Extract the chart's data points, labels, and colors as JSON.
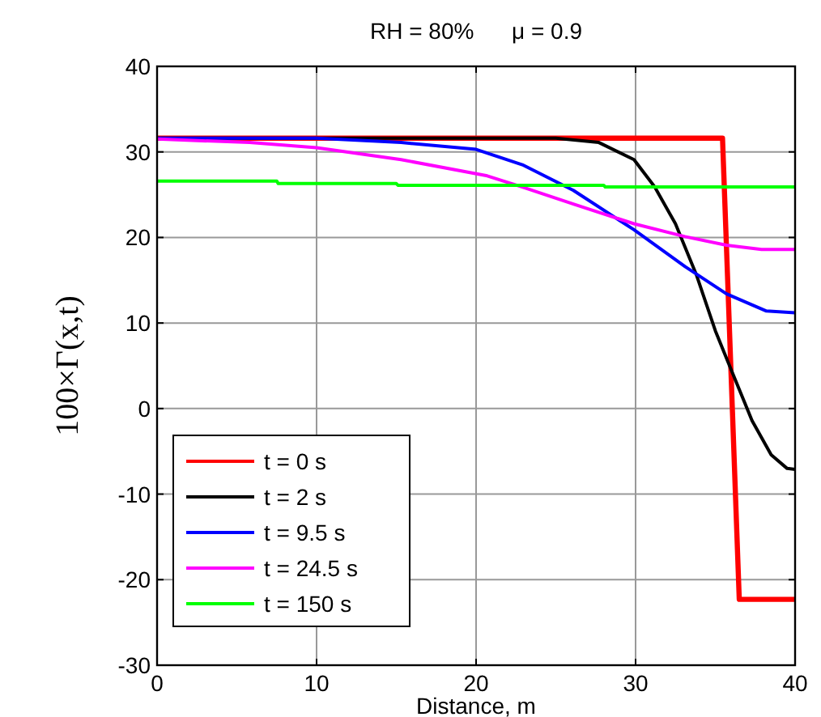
{
  "chart_data": {
    "type": "line",
    "title": "RH = 80%      μ = 0.9",
    "xlabel": "Distance, m",
    "ylabel": "100×Γ(x,t)",
    "xlim": [
      0,
      40
    ],
    "ylim": [
      -30,
      40
    ],
    "xticks": [
      0,
      10,
      20,
      30,
      40
    ],
    "yticks": [
      -30,
      -20,
      -10,
      0,
      10,
      20,
      30,
      40
    ],
    "grid": true,
    "legend": "bottom left",
    "line_style": "solid",
    "marker": "none",
    "series": [
      {
        "name": "t = 0 s",
        "color": "#ff0000",
        "x": [
          0,
          35.45,
          36.5,
          40
        ],
        "values": [
          31.6,
          31.6,
          -22.3,
          -22.3
        ]
      },
      {
        "name": "t = 2 s",
        "color": "#000000",
        "x": [
          0,
          25,
          27.7,
          29.9,
          31.2,
          32.5,
          33.8,
          35.0,
          36.0,
          37.3,
          38.5,
          39.5,
          40
        ],
        "values": [
          31.6,
          31.6,
          31.1,
          29.1,
          25.9,
          21.6,
          15.7,
          9.1,
          4.5,
          -1.4,
          -5.4,
          -7.0,
          -7.1
        ]
      },
      {
        "name": "t = 9.5 s",
        "color": "#0000ff",
        "x": [
          0,
          10,
          15.3,
          20,
          22.9,
          26.1,
          29.9,
          33.1,
          35.7,
          38.2,
          40
        ],
        "values": [
          31.6,
          31.6,
          31.1,
          30.3,
          28.5,
          25.5,
          20.9,
          16.6,
          13.4,
          11.4,
          11.2
        ]
      },
      {
        "name": "t = 24.5 s",
        "color": "#ff00ff",
        "x": [
          0,
          5.8,
          10,
          15.3,
          20.7,
          22.9,
          26.1,
          29.9,
          33.1,
          35.7,
          37.9,
          40
        ],
        "values": [
          31.5,
          31.1,
          30.5,
          29.1,
          27.2,
          25.9,
          23.9,
          21.6,
          20.1,
          19.1,
          18.6,
          18.6
        ]
      },
      {
        "name": "t = 150 s",
        "color": "#00ff00",
        "x": [
          0,
          7.5,
          7.6,
          15,
          15.1,
          28,
          28.1,
          40
        ],
        "values": [
          26.6,
          26.6,
          26.3,
          26.3,
          26.1,
          26.1,
          25.9,
          25.9
        ]
      }
    ]
  }
}
